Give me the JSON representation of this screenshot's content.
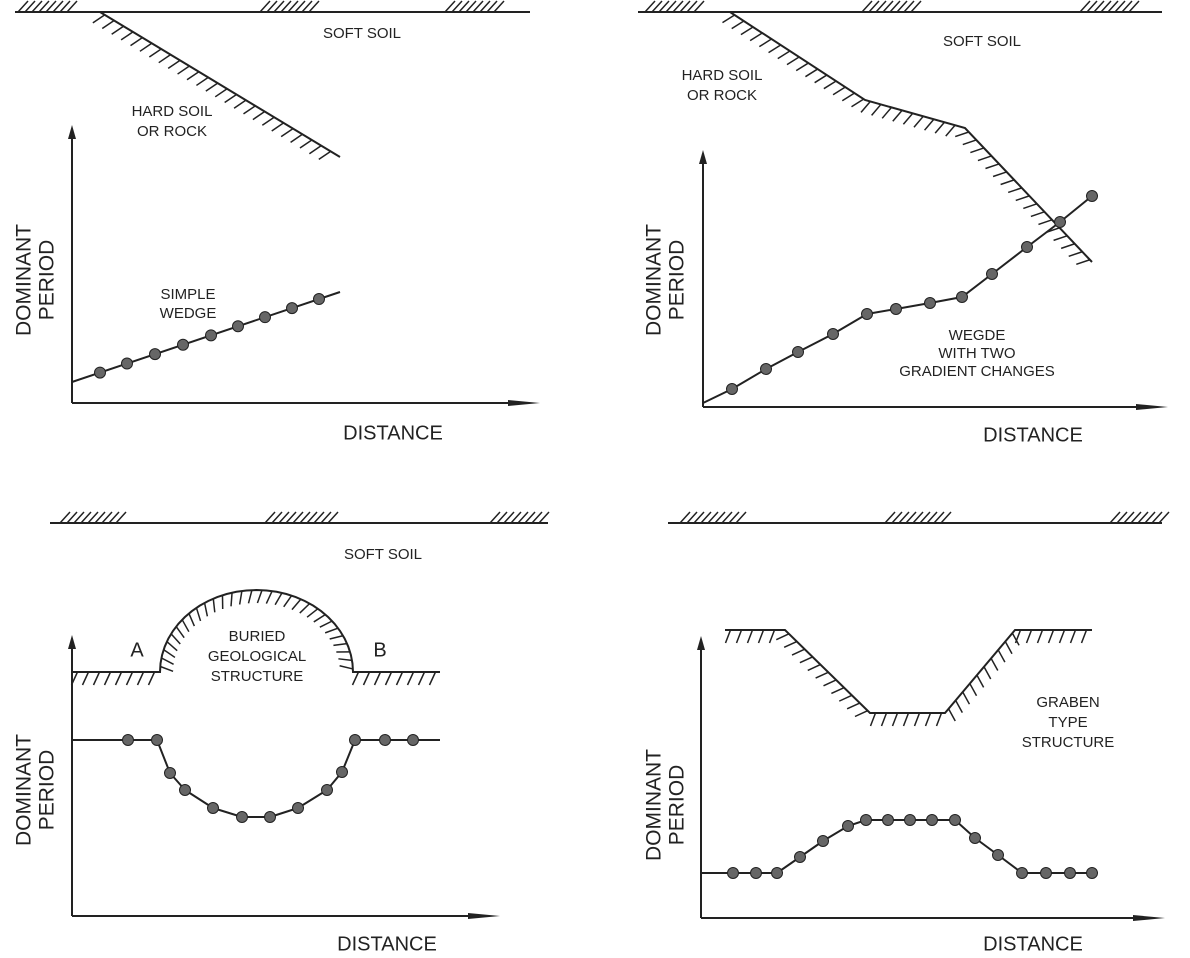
{
  "panels": [
    {
      "soil_label": "SOFT SOIL",
      "rock_label": [
        "HARD SOIL",
        "OR ROCK"
      ],
      "curve_label": [
        "SIMPLE",
        "WEDGE"
      ],
      "y_axis_label": [
        "DOMINANT",
        "PERIOD"
      ],
      "x_axis_label": "DISTANCE"
    },
    {
      "soil_label": "SOFT SOIL",
      "rock_label": [
        "HARD SOIL",
        "OR ROCK"
      ],
      "curve_label": [
        "WEGDE",
        "WITH TWO",
        "GRADIENT CHANGES"
      ],
      "y_axis_label": [
        "DOMINANT",
        "PERIOD"
      ],
      "x_axis_label": "DISTANCE"
    },
    {
      "soil_label": "SOFT SOIL",
      "point_labels": [
        "A",
        "B"
      ],
      "structure_label": [
        "BURIED",
        "GEOLOGICAL",
        "STRUCTURE"
      ],
      "y_axis_label": [
        "DOMINANT",
        "PERIOD"
      ],
      "x_axis_label": "DISTANCE"
    },
    {
      "structure_label": [
        "GRABEN",
        "TYPE",
        "STRUCTURE"
      ],
      "y_axis_label": [
        "DOMINANT",
        "PERIOD"
      ],
      "x_axis_label": "DISTANCE"
    }
  ]
}
